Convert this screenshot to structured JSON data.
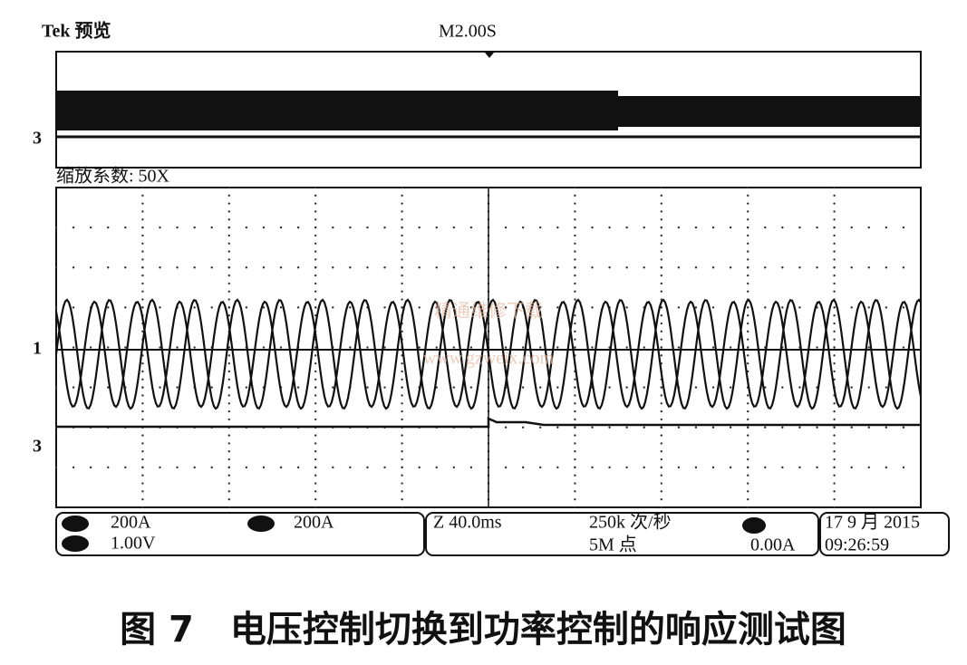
{
  "header": {
    "brand": "Tek 预览",
    "timebase": "M2.00S"
  },
  "zoom_label": "缩放系数: 50X",
  "markers": {
    "overview_ch3": "3",
    "main_ch1": "1",
    "main_ch3": "3"
  },
  "watermark": {
    "text": "精通维修下载",
    "url": "www.gzweix.com"
  },
  "status": {
    "ch1_scale": "200A",
    "ch2_scale": "200A",
    "ch3_scale": "1.00V",
    "zoom_time": "Z 40.0ms",
    "sample_rate": "250k 次/秒",
    "record_length": "5M 点",
    "trigger_level": "0.00A",
    "date": "17 9 月 2015",
    "time": "09:26:59"
  },
  "caption": "图 7　电压控制切换到功率控制的响应测试图"
}
